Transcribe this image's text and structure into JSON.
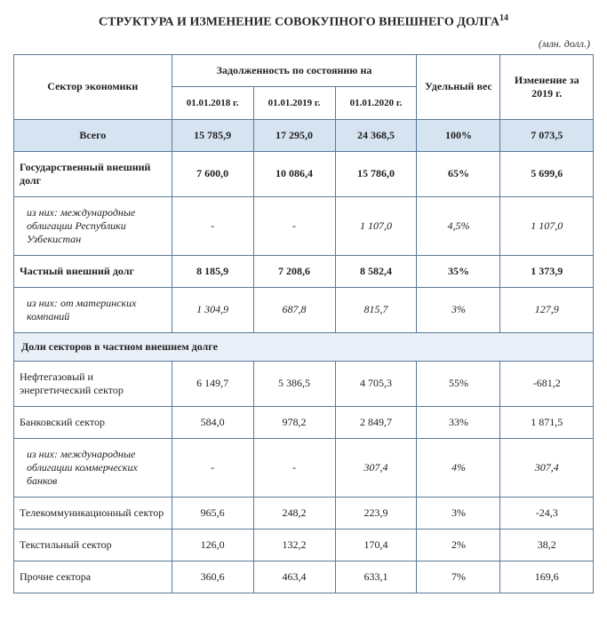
{
  "title": "СТРУКТУРА И ИЗМЕНЕНИЕ СОВОКУПНОГО ВНЕШНЕГО ДОЛГА",
  "title_sup": "14",
  "unit": "(млн. долл.)",
  "headers": {
    "sector": "Сектор экономики",
    "debt_group": "Задолженность по состоянию на",
    "d1": "01.01.2018 г.",
    "d2": "01.01.2019 г.",
    "d3": "01.01.2020 г.",
    "weight": "Удельный вес",
    "change": "Изменение за 2019 г."
  },
  "total": {
    "label": "Всего",
    "d1": "15 785,9",
    "d2": "17 295,0",
    "d3": "24 368,5",
    "weight": "100%",
    "change": "7 073,5"
  },
  "rows": {
    "gov": {
      "label": "Государственный внешний долг",
      "d1": "7 600,0",
      "d2": "10 086,4",
      "d3": "15 786,0",
      "weight": "65%",
      "change": "5 699,6"
    },
    "gov_sub": {
      "label": "из них: международные облигации Республики Узбекистан",
      "d1": "-",
      "d2": "-",
      "d3": "1 107,0",
      "weight": "4,5%",
      "change": "1 107,0"
    },
    "priv": {
      "label": "Частный внешний долг",
      "d1": "8 185,9",
      "d2": "7 208,6",
      "d3": "8 582,4",
      "weight": "35%",
      "change": "1 373,9"
    },
    "priv_sub": {
      "label": "из них: от материнских компаний",
      "d1": "1 304,9",
      "d2": "687,8",
      "d3": "815,7",
      "weight": "3%",
      "change": "127,9"
    }
  },
  "section_label": "Доли секторов в частном внешнем долге",
  "sector_rows": {
    "oil": {
      "label": "Нефтегазовый и энергетический сектор",
      "d1": "6 149,7",
      "d2": "5 386,5",
      "d3": "4 705,3",
      "weight": "55%",
      "change": "-681,2"
    },
    "bank": {
      "label": "Банковский сектор",
      "d1": "584,0",
      "d2": "978,2",
      "d3": "2 849,7",
      "weight": "33%",
      "change": "1 871,5"
    },
    "bank_sub": {
      "label": "из них: международные облигации коммерческих банков",
      "d1": "-",
      "d2": "-",
      "d3": "307,4",
      "weight": "4%",
      "change": "307,4"
    },
    "tel": {
      "label": "Телекоммуникационный сектор",
      "d1": "965,6",
      "d2": "248,2",
      "d3": "223,9",
      "weight": "3%",
      "change": "-24,3"
    },
    "tex": {
      "label": "Текстильный сектор",
      "d1": "126,0",
      "d2": "132,2",
      "d3": "170,4",
      "weight": "2%",
      "change": "38,2"
    },
    "other": {
      "label": "Прочие сектора",
      "d1": "360,6",
      "d2": "463,4",
      "d3": "633,1",
      "weight": "7%",
      "change": "169,6"
    }
  },
  "colors": {
    "border": "#5a7a9a",
    "total_bg": "#d6e3f0",
    "section_bg": "#eaf0f7"
  }
}
